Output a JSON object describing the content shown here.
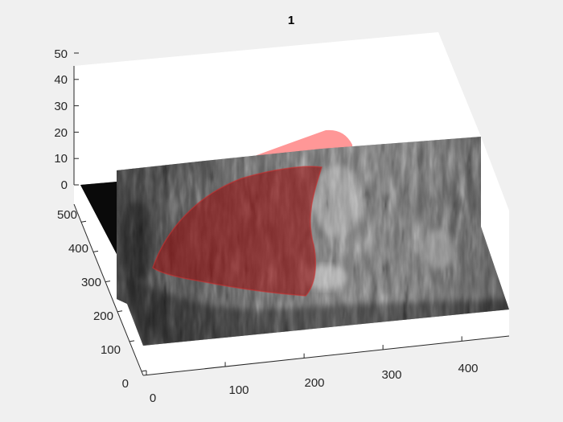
{
  "chart_data": {
    "type": "surface",
    "title": "1",
    "xlabel": "",
    "ylabel": "",
    "zlabel": "",
    "x_ticks": [
      "0",
      "100",
      "200",
      "300",
      "400"
    ],
    "y_ticks": [
      "0",
      "100",
      "200",
      "300",
      "400",
      "500"
    ],
    "z_ticks": [
      "0",
      "10",
      "20",
      "30",
      "40",
      "50"
    ],
    "xlim": [
      0,
      460
    ],
    "ylim": [
      0,
      560
    ],
    "zlim": [
      0,
      50
    ],
    "grid": false,
    "series": [
      {
        "type": "image-slice",
        "colormap": "gray",
        "z": 0
      },
      {
        "type": "isosurface",
        "color": "#ff4444",
        "alpha": 0.45
      }
    ]
  }
}
